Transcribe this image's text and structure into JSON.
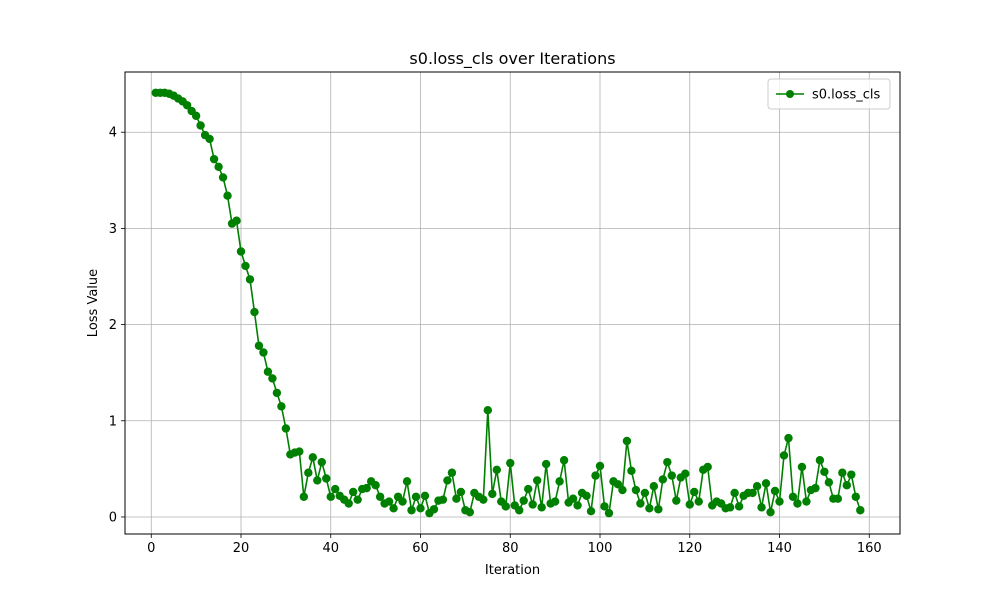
{
  "chart_data": {
    "type": "line",
    "title": "s0.loss_cls over Iterations",
    "xlabel": "Iteration",
    "ylabel": "Loss Value",
    "xlim": [
      -5.85,
      166.85
    ],
    "ylim": [
      -0.177,
      4.626
    ],
    "xticks": [
      0,
      20,
      40,
      60,
      80,
      100,
      120,
      140,
      160
    ],
    "yticks": [
      0,
      1,
      2,
      3,
      4
    ],
    "grid": true,
    "legend_position": "upper right",
    "series": [
      {
        "name": "s0.loss_cls",
        "color": "#008000",
        "marker": "circle",
        "x": [
          1,
          2,
          3,
          4,
          5,
          6,
          7,
          8,
          9,
          10,
          11,
          12,
          13,
          14,
          15,
          16,
          17,
          18,
          19,
          20,
          21,
          22,
          23,
          24,
          25,
          26,
          27,
          28,
          29,
          30,
          31,
          32,
          33,
          34,
          35,
          36,
          37,
          38,
          39,
          40,
          41,
          42,
          43,
          44,
          45,
          46,
          47,
          48,
          49,
          50,
          51,
          52,
          53,
          54,
          55,
          56,
          57,
          58,
          59,
          60,
          61,
          62,
          63,
          64,
          65,
          66,
          67,
          68,
          69,
          70,
          71,
          72,
          73,
          74,
          75,
          76,
          77,
          78,
          79,
          80,
          81,
          82,
          83,
          84,
          85,
          86,
          87,
          88,
          89,
          90,
          91,
          92,
          93,
          94,
          95,
          96,
          97,
          98,
          99,
          100,
          101,
          102,
          103,
          104,
          105,
          106,
          107,
          108,
          109,
          110,
          111,
          112,
          113,
          114,
          115,
          116,
          117,
          118,
          119,
          120,
          121,
          122,
          123,
          124,
          125,
          126,
          127,
          128,
          129,
          130,
          131,
          132,
          133,
          134,
          135,
          136,
          137,
          138,
          139,
          140,
          141,
          142,
          143,
          144,
          145,
          146,
          147,
          148,
          149,
          150,
          151,
          152,
          153,
          154,
          155,
          156,
          157,
          158
        ],
        "y": [
          4.41,
          4.41,
          4.41,
          4.4,
          4.38,
          4.35,
          4.32,
          4.28,
          4.22,
          4.17,
          4.07,
          3.97,
          3.93,
          3.72,
          3.64,
          3.53,
          3.34,
          3.05,
          3.08,
          2.76,
          2.61,
          2.47,
          2.13,
          1.78,
          1.71,
          1.51,
          1.44,
          1.29,
          1.15,
          0.92,
          0.65,
          0.67,
          0.68,
          0.21,
          0.46,
          0.62,
          0.38,
          0.57,
          0.4,
          0.21,
          0.29,
          0.22,
          0.18,
          0.14,
          0.26,
          0.18,
          0.29,
          0.3,
          0.37,
          0.33,
          0.21,
          0.14,
          0.16,
          0.09,
          0.21,
          0.16,
          0.37,
          0.07,
          0.21,
          0.09,
          0.22,
          0.04,
          0.08,
          0.17,
          0.18,
          0.38,
          0.46,
          0.19,
          0.26,
          0.07,
          0.05,
          0.25,
          0.21,
          0.18,
          1.11,
          0.24,
          0.49,
          0.16,
          0.11,
          0.56,
          0.12,
          0.07,
          0.17,
          0.29,
          0.13,
          0.38,
          0.1,
          0.55,
          0.14,
          0.16,
          0.37,
          0.59,
          0.15,
          0.19,
          0.12,
          0.25,
          0.22,
          0.06,
          0.43,
          0.53,
          0.11,
          0.04,
          0.37,
          0.34,
          0.28,
          0.79,
          0.48,
          0.28,
          0.14,
          0.25,
          0.09,
          0.32,
          0.08,
          0.39,
          0.57,
          0.43,
          0.17,
          0.41,
          0.45,
          0.13,
          0.26,
          0.16,
          0.49,
          0.52,
          0.12,
          0.16,
          0.14,
          0.09,
          0.1,
          0.25,
          0.11,
          0.22,
          0.25,
          0.25,
          0.32,
          0.1,
          0.35,
          0.05,
          0.27,
          0.16,
          0.64,
          0.82,
          0.21,
          0.14,
          0.52,
          0.16,
          0.28,
          0.3,
          0.59,
          0.47,
          0.36,
          0.19,
          0.19,
          0.46,
          0.33,
          0.44,
          0.21,
          0.07
        ]
      }
    ]
  }
}
